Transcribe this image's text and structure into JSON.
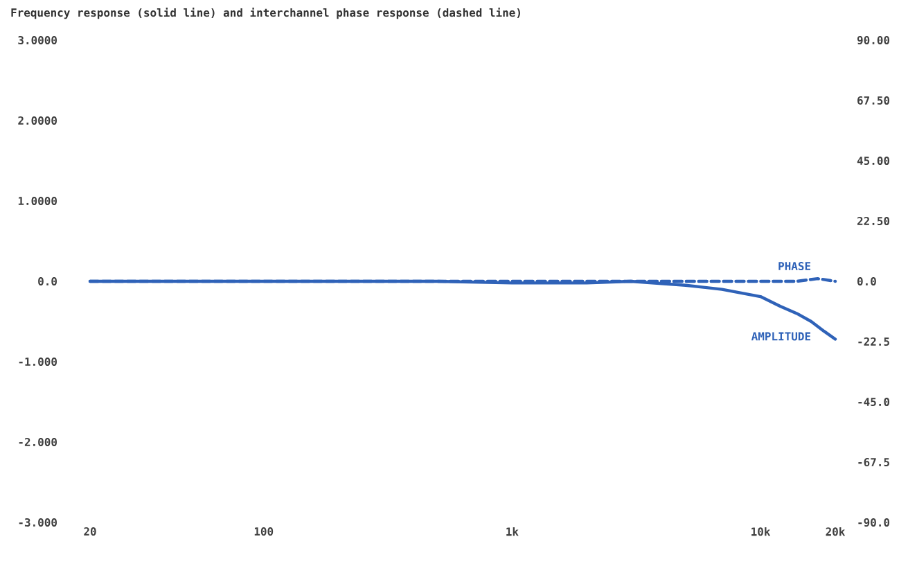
{
  "chart_data": {
    "type": "line",
    "title": "Frequency response (solid line) and interchannel phase response (dashed line)",
    "log": "x",
    "grid": false,
    "xlim": [
      20,
      20000
    ],
    "xticks": [
      20,
      100,
      {
        "value": 1000,
        "label": "1k"
      },
      {
        "value": 10000,
        "label": "10k"
      },
      {
        "value": 20000,
        "label": "20k"
      }
    ],
    "ylim": [
      -3,
      3
    ],
    "yticks": [
      {
        "value": -3,
        "label": "-3.000"
      },
      {
        "value": -2,
        "label": "-2.000"
      },
      {
        "value": -1,
        "label": "-1.000"
      },
      {
        "value": 0,
        "label": "0.0"
      },
      {
        "value": 1,
        "label": "1.0000"
      },
      {
        "value": 2,
        "label": "2.0000"
      },
      {
        "value": 3,
        "label": "3.0000"
      }
    ],
    "y2lim": [
      -90,
      90
    ],
    "y2ticks": [
      {
        "value": -90,
        "label": "-90.0"
      },
      {
        "value": -67.5,
        "label": "-67.5"
      },
      {
        "value": -45,
        "label": "-45.0"
      },
      {
        "value": -22.5,
        "label": "-22.5"
      },
      {
        "value": 0,
        "label": "0.0"
      },
      {
        "value": 22.5,
        "label": "22.50"
      },
      {
        "value": 45,
        "label": "45.00"
      },
      {
        "value": 67.5,
        "label": "67.50"
      },
      {
        "value": 90,
        "label": "90.00"
      }
    ],
    "series": [
      {
        "name": "AMPLITUDE",
        "color": "#2f62b8",
        "line_style": "solid",
        "x": [
          20,
          30,
          50,
          100,
          200,
          500,
          1000,
          2000,
          3000,
          5000,
          7000,
          10000,
          12000,
          14000,
          16000,
          18000,
          20000
        ],
        "values": [
          0,
          0,
          0,
          0,
          0,
          0,
          -0.02,
          -0.02,
          0,
          -0.05,
          -0.1,
          -0.19,
          -0.31,
          -0.4,
          -0.5,
          -0.62,
          -0.72
        ]
      },
      {
        "name": "PHASE",
        "color": "#2f62b8",
        "line_style": "dashed",
        "axis": "y2",
        "x": [
          20,
          100,
          1000,
          3000,
          7000,
          10000,
          14000,
          17000,
          20000
        ],
        "values": [
          0,
          0,
          0,
          0,
          0,
          0,
          0,
          1,
          0
        ]
      }
    ]
  }
}
